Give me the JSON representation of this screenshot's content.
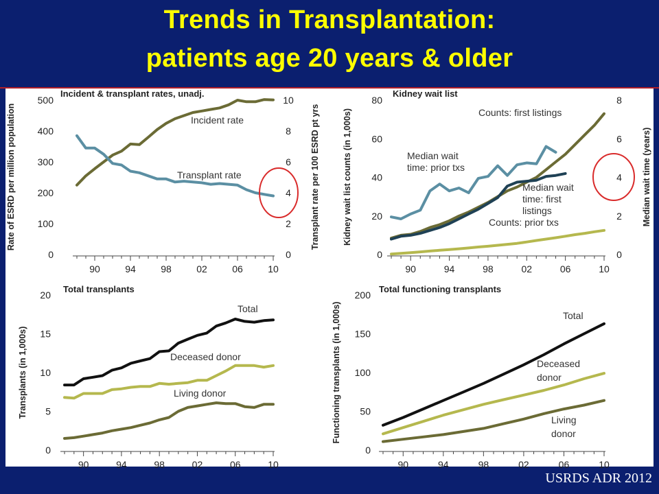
{
  "slide": {
    "title_line1": "Trends in Transplantation:",
    "title_line2": "patients age 20 years & older",
    "source": "USRDS ADR 2012"
  },
  "colors": {
    "background": "#0b1f6f",
    "title": "#ffff00",
    "incident": "#6b6b35",
    "transplant_rate": "#5b8fa3",
    "total": "#111111",
    "deceased": "#b5b84e",
    "living": "#6b6b35",
    "wait_prior": "#5b8fa3",
    "wait_first": "#1f4155",
    "highlight_circle": "#d92b2b"
  },
  "chart_data": [
    {
      "id": "rates",
      "type": "line",
      "title": "Incident & transplant rates, unadj.",
      "xlabel": "",
      "ylabel": "Rate of ESRD per million population",
      "ylabel_right": "Transplant rate per 100 ESRD pt yrs",
      "xlim": [
        1988,
        2010
      ],
      "ylim": [
        0,
        500
      ],
      "ylim_right": [
        0,
        10
      ],
      "x_ticks": [
        1990,
        1994,
        1998,
        2002,
        2006,
        2010
      ],
      "x_tick_labels": [
        "90",
        "94",
        "98",
        "02",
        "06",
        "10"
      ],
      "y_ticks": [
        0,
        100,
        200,
        300,
        400,
        500
      ],
      "y_ticks_right": [
        0,
        2,
        4,
        6,
        8,
        10
      ],
      "highlight": "circle around right-axis value 4",
      "x": [
        1988,
        1989,
        1990,
        1991,
        1992,
        1993,
        1994,
        1995,
        1996,
        1997,
        1998,
        1999,
        2000,
        2001,
        2002,
        2003,
        2004,
        2005,
        2006,
        2007,
        2008,
        2009,
        2010
      ],
      "series": [
        {
          "name": "Incident rate",
          "axis": "left",
          "color_key": "incident",
          "values": [
            225,
            255,
            278,
            300,
            322,
            335,
            358,
            356,
            380,
            405,
            425,
            440,
            450,
            460,
            465,
            470,
            475,
            485,
            500,
            495,
            495,
            502,
            501
          ]
        },
        {
          "name": "Transplant rate",
          "axis": "right",
          "color_key": "transplant_rate",
          "values": [
            7.7,
            6.9,
            6.9,
            6.5,
            5.9,
            5.8,
            5.4,
            5.3,
            5.1,
            4.9,
            4.9,
            4.7,
            4.75,
            4.7,
            4.65,
            4.55,
            4.6,
            4.55,
            4.5,
            4.2,
            4.0,
            3.9,
            3.8
          ]
        }
      ],
      "labels": [
        {
          "text": "Incident rate",
          "series": 0
        },
        {
          "text": "Transplant rate",
          "series": 1
        }
      ]
    },
    {
      "id": "waitlist",
      "type": "line",
      "title": "Kidney wait list",
      "xlabel": "",
      "ylabel": "Kidney wait list counts (in 1,000s)",
      "ylabel_right": "Median wait time (years)",
      "xlim": [
        1988,
        2010
      ],
      "ylim": [
        0,
        80
      ],
      "ylim_right": [
        0,
        8
      ],
      "x_ticks": [
        1990,
        1994,
        1998,
        2002,
        2006,
        2010
      ],
      "x_tick_labels": [
        "90",
        "94",
        "98",
        "02",
        "06",
        "10"
      ],
      "y_ticks": [
        0,
        20,
        40,
        60,
        80
      ],
      "y_ticks_right": [
        0,
        2,
        4,
        6,
        8
      ],
      "highlight": "circle around right-axis value 4",
      "series": [
        {
          "name": "Counts: first listings",
          "axis": "left",
          "color_key": "incident",
          "x": [
            1988,
            1989,
            1990,
            1991,
            1992,
            1993,
            1994,
            1995,
            1996,
            1997,
            1998,
            1999,
            2000,
            2001,
            2002,
            2003,
            2004,
            2005,
            2006,
            2007,
            2008,
            2009,
            2010
          ],
          "values": [
            8.5,
            10,
            10.5,
            12,
            14,
            15.5,
            17.5,
            20,
            22,
            24.5,
            27,
            30,
            33,
            35,
            37.5,
            40,
            44,
            48,
            52,
            57,
            62,
            67,
            73
          ]
        },
        {
          "name": "Counts: prior txs",
          "axis": "left",
          "color_key": "deceased",
          "x": [
            1988,
            1989,
            1990,
            1991,
            1992,
            1993,
            1994,
            1995,
            1996,
            1997,
            1998,
            1999,
            2000,
            2001,
            2002,
            2003,
            2004,
            2005,
            2006,
            2007,
            2008,
            2009,
            2010
          ],
          "values": [
            0.3,
            0.6,
            1,
            1.4,
            1.8,
            2.2,
            2.6,
            3,
            3.4,
            3.9,
            4.3,
            4.8,
            5.3,
            5.8,
            6.5,
            7.3,
            8,
            8.7,
            9.5,
            10.3,
            11,
            11.8,
            12.5
          ]
        },
        {
          "name": "Median wait time: prior txs",
          "axis": "right",
          "color_key": "wait_prior",
          "x": [
            1988,
            1989,
            1990,
            1991,
            1992,
            1993,
            1994,
            1995,
            1996,
            1997,
            1998,
            1999,
            2000,
            2001,
            2002,
            2003,
            2004,
            2005
          ],
          "values": [
            1.95,
            1.85,
            2.1,
            2.3,
            3.3,
            3.65,
            3.3,
            3.45,
            3.2,
            3.95,
            4.05,
            4.6,
            4.1,
            4.65,
            4.75,
            4.7,
            5.6,
            5.3
          ]
        },
        {
          "name": "Median wait time: first listings",
          "axis": "right",
          "color_key": "wait_first",
          "x": [
            1988,
            1989,
            1990,
            1991,
            1992,
            1993,
            1994,
            1995,
            1996,
            1997,
            1998,
            1999,
            2000,
            2001,
            2002,
            2003,
            2004,
            2005,
            2006
          ],
          "values": [
            0.8,
            0.95,
            1.0,
            1.1,
            1.25,
            1.4,
            1.6,
            1.85,
            2.1,
            2.35,
            2.65,
            2.95,
            3.55,
            3.75,
            3.8,
            3.85,
            4.05,
            4.1,
            4.2
          ]
        }
      ],
      "labels": [
        {
          "text": "Counts: first listings",
          "series": 0
        },
        {
          "text": "Counts: prior txs",
          "series": 1
        },
        {
          "text": "Median wait",
          "series": 2
        },
        {
          "text": "time: prior txs",
          "series": 2
        },
        {
          "text": "Median wait",
          "series": 3
        },
        {
          "text": "time: first",
          "series": 3
        },
        {
          "text": "listings",
          "series": 3
        }
      ]
    },
    {
      "id": "total-transplants",
      "type": "line",
      "title": "Total transplants",
      "xlabel": "",
      "ylabel": "Transplants (in 1,000s)",
      "xlim": [
        1988,
        2010
      ],
      "ylim": [
        0,
        20
      ],
      "x_ticks": [
        1990,
        1994,
        1998,
        2002,
        2006,
        2010
      ],
      "x_tick_labels": [
        "90",
        "94",
        "98",
        "02",
        "06",
        "10"
      ],
      "y_ticks": [
        0,
        5,
        10,
        15,
        20
      ],
      "x": [
        1988,
        1989,
        1990,
        1991,
        1992,
        1993,
        1994,
        1995,
        1996,
        1997,
        1998,
        1999,
        2000,
        2001,
        2002,
        2003,
        2004,
        2005,
        2006,
        2007,
        2008,
        2009,
        2010
      ],
      "series": [
        {
          "name": "Total",
          "color_key": "total",
          "values": [
            8.4,
            8.4,
            9.2,
            9.4,
            9.6,
            10.3,
            10.6,
            11.2,
            11.5,
            11.8,
            12.7,
            12.8,
            13.8,
            14.3,
            14.8,
            15.1,
            16.0,
            16.4,
            16.9,
            16.6,
            16.5,
            16.7,
            16.8
          ]
        },
        {
          "name": "Deceased donor",
          "color_key": "deceased",
          "values": [
            6.8,
            6.7,
            7.3,
            7.3,
            7.3,
            7.8,
            7.9,
            8.1,
            8.2,
            8.2,
            8.6,
            8.5,
            8.6,
            8.7,
            9.0,
            9.0,
            9.6,
            10.2,
            10.9,
            10.9,
            10.9,
            10.7,
            10.9
          ]
        },
        {
          "name": "Living donor",
          "color_key": "living",
          "values": [
            1.5,
            1.6,
            1.8,
            2.0,
            2.2,
            2.5,
            2.7,
            2.9,
            3.2,
            3.5,
            3.9,
            4.2,
            5.0,
            5.5,
            5.7,
            5.9,
            6.1,
            6.0,
            6.0,
            5.6,
            5.5,
            5.9,
            5.9
          ]
        }
      ],
      "labels": [
        {
          "text": "Total",
          "series": 0
        },
        {
          "text": "Deceased donor",
          "series": 1
        },
        {
          "text": "Living donor",
          "series": 2
        }
      ]
    },
    {
      "id": "functioning-transplants",
      "type": "line",
      "title": "Total functioning transplants",
      "xlabel": "",
      "ylabel": "Functioning transplants (in 1,000s)",
      "xlim": [
        1988,
        2010
      ],
      "ylim": [
        0,
        200
      ],
      "x_ticks": [
        1990,
        1994,
        1998,
        2002,
        2006,
        2010
      ],
      "x_tick_labels": [
        "90",
        "94",
        "98",
        "02",
        "06",
        "10"
      ],
      "y_ticks": [
        0,
        50,
        100,
        150,
        200
      ],
      "x": [
        1988,
        1990,
        1992,
        1994,
        1996,
        1998,
        2000,
        2002,
        2004,
        2006,
        2008,
        2010
      ],
      "series": [
        {
          "name": "Total",
          "color_key": "total",
          "values": [
            32,
            42,
            53,
            64,
            75,
            86,
            98,
            110,
            123,
            137,
            150,
            163
          ]
        },
        {
          "name": "Deceased donor",
          "color_key": "deceased",
          "values": [
            21,
            29,
            37,
            45,
            52,
            59,
            65,
            71,
            77,
            84,
            92,
            99
          ]
        },
        {
          "name": "Living donor",
          "color_key": "living",
          "values": [
            11,
            14,
            17,
            20,
            24,
            28,
            34,
            40,
            47,
            53,
            58,
            64
          ]
        }
      ],
      "labels": [
        {
          "text": "Total",
          "series": 0
        },
        {
          "text": "Deceased",
          "series": 1
        },
        {
          "text": "donor",
          "series": 1
        },
        {
          "text": "Living",
          "series": 2
        },
        {
          "text": "donor",
          "series": 2
        }
      ]
    }
  ]
}
